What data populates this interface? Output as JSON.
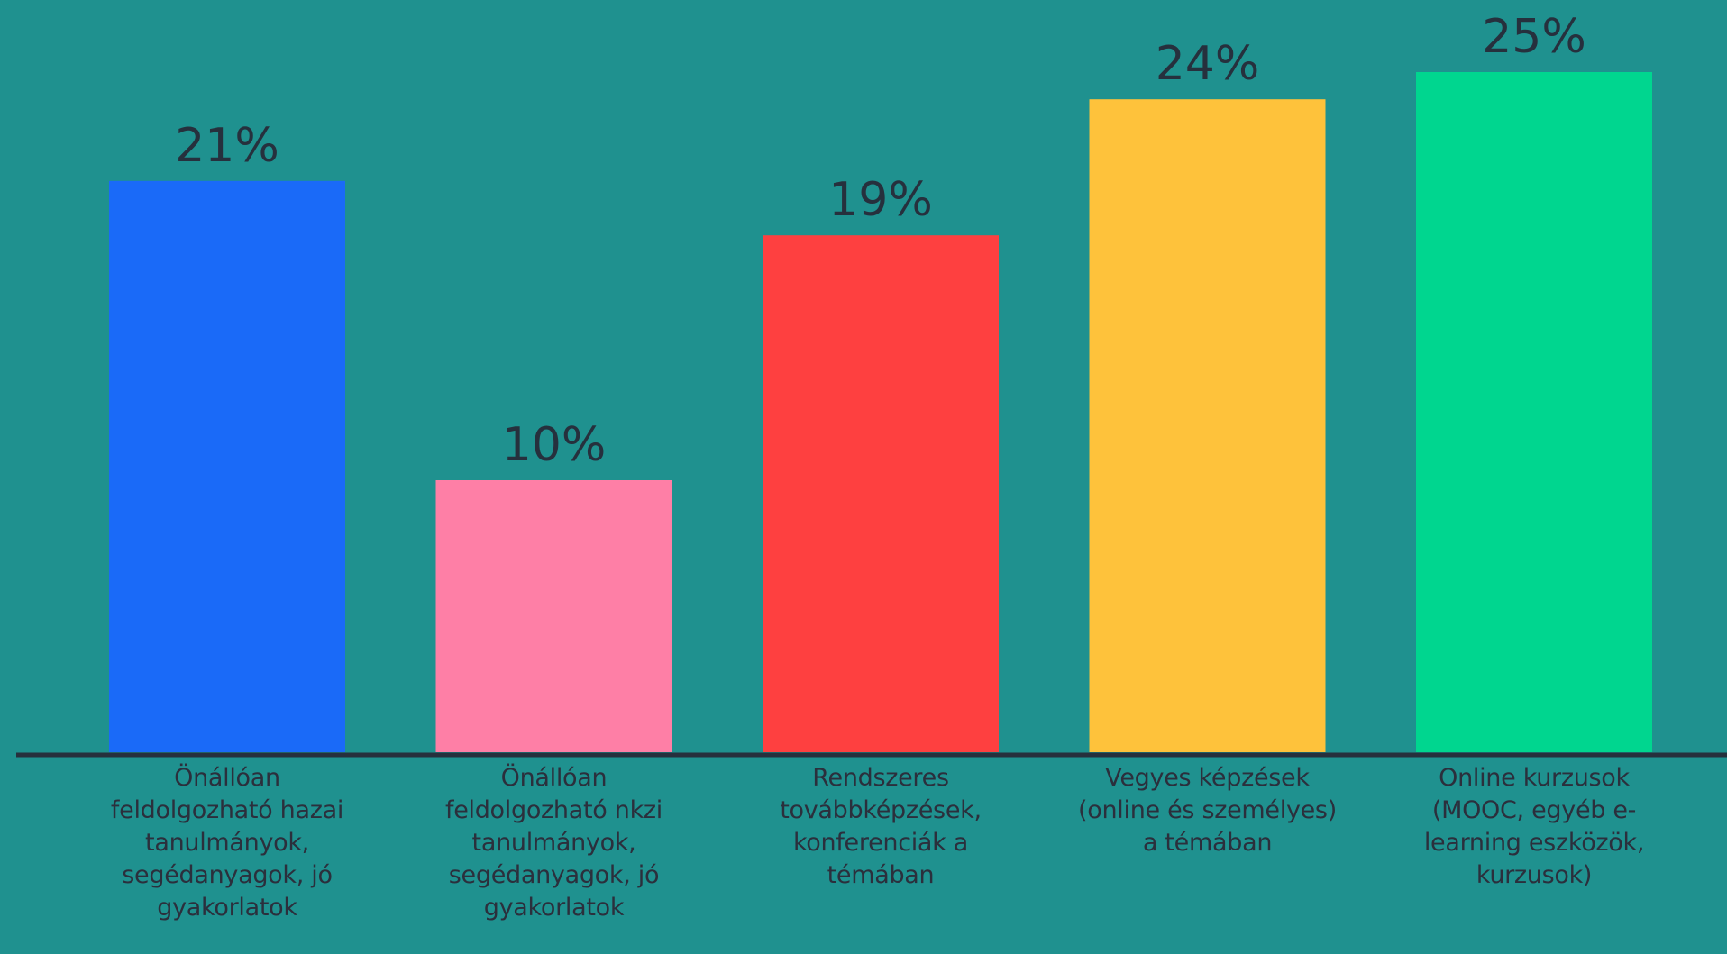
{
  "chart_data": {
    "type": "bar",
    "categories": [
      "Önállóan feldolgozható hazai tanulmányok, segédanyagok, jó gyakorlatok",
      "Önállóan feldolgozható nkzi tanulmányok, segédanyagok, jó gyakorlatok",
      "Rendszeres továbbképzések, konferenciák a témában",
      "Vegyes képzések (online és személyes) a témában",
      "Online kurzusok (MOOC, egyéb e-learning eszközök, kurzusok)"
    ],
    "values": [
      21,
      10,
      19,
      24,
      25
    ],
    "value_labels": [
      "21%",
      "10%",
      "19%",
      "24%",
      "25%"
    ],
    "colors": [
      "#1a6af8",
      "#fe7fa6",
      "#fe4040",
      "#fec23b",
      "#00d68f"
    ],
    "ylim": [
      0,
      25
    ],
    "grid": false,
    "legend": "none"
  }
}
